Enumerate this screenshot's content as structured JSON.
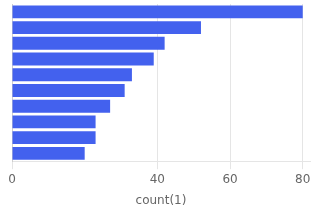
{
  "chart_data": {
    "type": "bar",
    "orientation": "horizontal",
    "categories": [
      null,
      null,
      null,
      null,
      null,
      null,
      null,
      null,
      null,
      null
    ],
    "values": [
      80,
      52,
      42,
      39,
      33,
      31,
      27,
      23,
      23,
      20
    ],
    "color": "#4361EE",
    "xlabel": "count(1)",
    "xlim": [
      0,
      82
    ],
    "xticks": [
      0,
      40,
      60,
      80
    ],
    "grid": true,
    "tick_labels": "x"
  }
}
